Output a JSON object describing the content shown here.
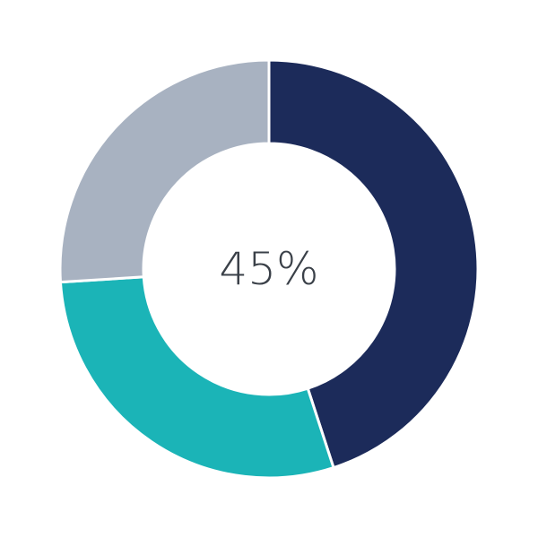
{
  "chart_data": {
    "type": "pie",
    "variant": "donut",
    "center_label": "45%",
    "slices": [
      {
        "value": 45,
        "color": "#1c2b5a"
      },
      {
        "value": 29,
        "color": "#1bb4b7"
      },
      {
        "value": 26,
        "color": "#a8b2c1"
      }
    ],
    "start": "top",
    "direction": "clockwise"
  }
}
